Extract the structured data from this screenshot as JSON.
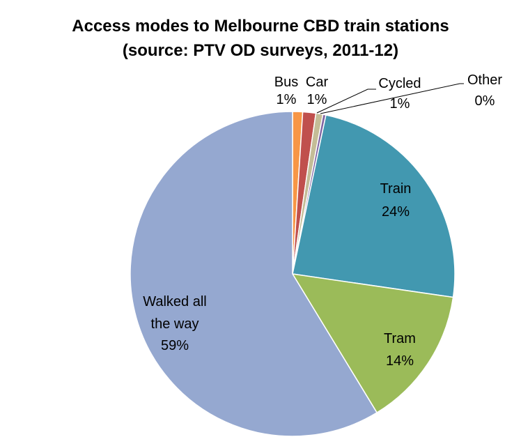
{
  "chart_data": {
    "type": "pie",
    "title": "Access modes to Melbourne CBD train stations",
    "subtitle": "(source: PTV OD surveys, 2011-12)",
    "start_angle_deg": 0,
    "direction": "clockwise",
    "slices": [
      {
        "label": "Bus",
        "value": 1,
        "value_label": "1%",
        "color": "#F79646"
      },
      {
        "label": "Car",
        "value": 1.3,
        "value_label": "1%",
        "color": "#C0504D"
      },
      {
        "label": "Cycled",
        "value": 0.7,
        "value_label": "1%",
        "color": "#C4BD97"
      },
      {
        "label": "Other",
        "value": 0.3,
        "value_label": "0%",
        "color": "#8064A2"
      },
      {
        "label": "Train",
        "value": 24,
        "value_label": "24%",
        "color": "#4298B0"
      },
      {
        "label": "Tram",
        "value": 14,
        "value_label": "14%",
        "color": "#9BBB59"
      },
      {
        "label": "Walked all the way",
        "value": 58.7,
        "value_label": "59%",
        "color": "#95A8D0"
      }
    ]
  }
}
